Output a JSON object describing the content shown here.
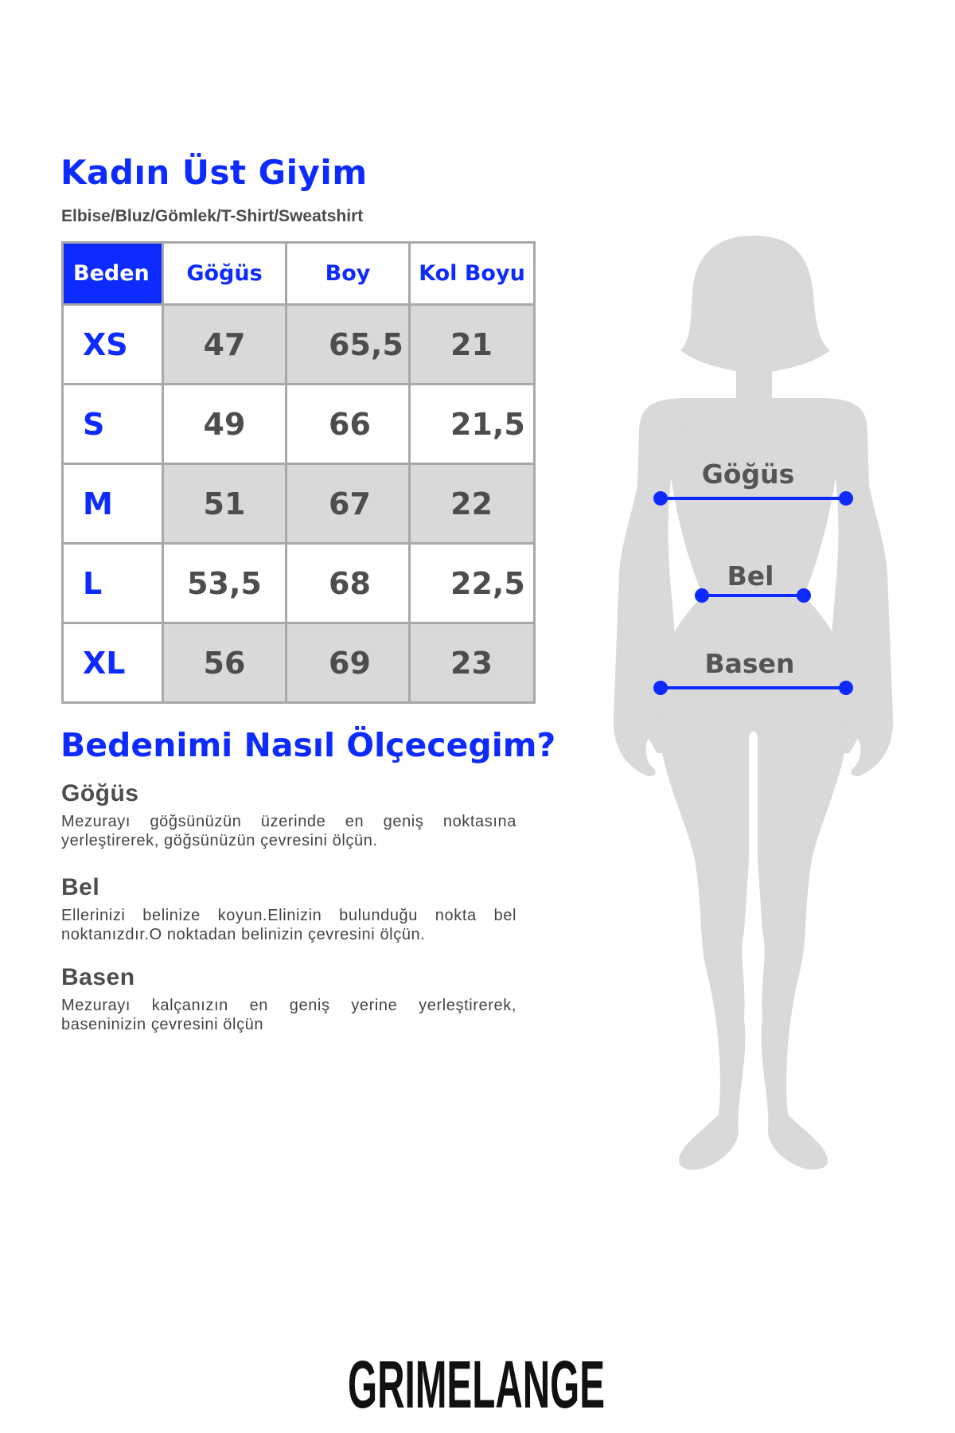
{
  "header": {
    "title": "Kadın Üst Giyim",
    "subtitle": "Elbise/Bluz/Gömlek/T-Shirt/Sweatshirt"
  },
  "size_table": {
    "columns": [
      "Beden",
      "Göğüs",
      "Boy",
      "Kol Boyu"
    ],
    "rows": [
      {
        "size": "XS",
        "gogus": "47",
        "boy": "65,5",
        "kol_boyu": "21"
      },
      {
        "size": "S",
        "gogus": "49",
        "boy": "66",
        "kol_boyu": "21,5"
      },
      {
        "size": "M",
        "gogus": "51",
        "boy": "67",
        "kol_boyu": "22"
      },
      {
        "size": "L",
        "gogus": "53,5",
        "boy": "68",
        "kol_boyu": "22,5"
      },
      {
        "size": "XL",
        "gogus": "56",
        "boy": "69",
        "kol_boyu": "23"
      }
    ]
  },
  "how_to": {
    "title": "Bedenimi Nasıl Ölçecegim?",
    "sections": [
      {
        "heading": "Göğüs",
        "text": "Mezurayı göğsünüzün üzerinde en geniş noktasına yerleştirerek, göğsünüzün çevresini ölçün."
      },
      {
        "heading": "Bel",
        "text": "Ellerinizi belinize koyun.Elinizin bulunduğu nokta bel noktanızdır.O noktadan belinizin çevresini ölçün."
      },
      {
        "heading": "Basen",
        "text": "Mezurayı kalçanızın en geniş yerine yerleştirerek, baseninizin çevresini ölçün"
      }
    ]
  },
  "figure": {
    "labels": {
      "chest": "Göğüs",
      "waist": "Bel",
      "hip": "Basen"
    }
  },
  "brand": {
    "logo_text": "GRIMELANGE"
  },
  "colors": {
    "accent": "#0d2bff",
    "silhouette": "#d9d9d9",
    "text": "#4d4d4d",
    "cell_shade": "#d9d9d9",
    "border": "#a8a8a8"
  }
}
